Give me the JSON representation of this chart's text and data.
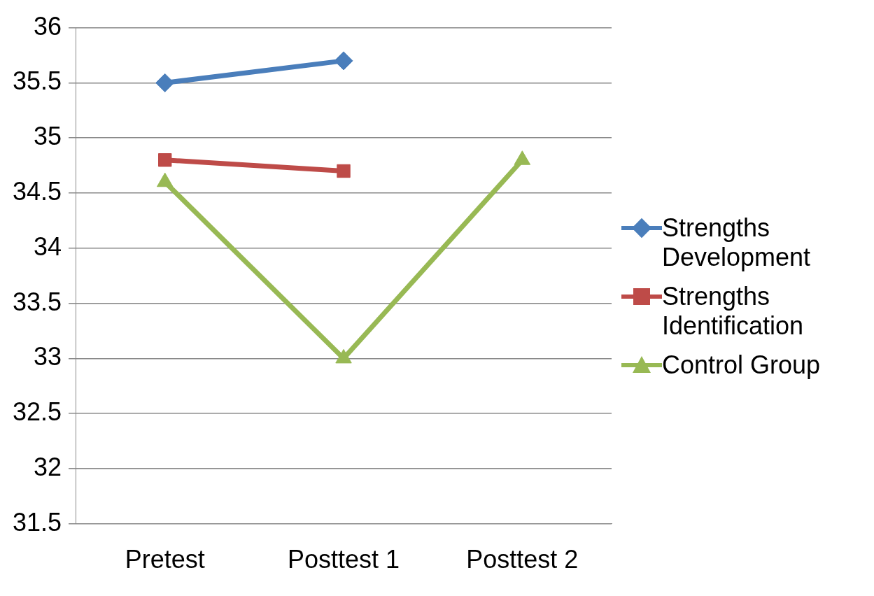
{
  "chart_data": {
    "type": "line",
    "categories": [
      "Pretest",
      "Posttest 1",
      "Posttest 2"
    ],
    "series": [
      {
        "name": "Strengths Development",
        "color": "#4a7ebb",
        "marker": "diamond",
        "values": [
          35.5,
          35.7,
          null
        ]
      },
      {
        "name": "Strengths Identification",
        "color": "#be4b48",
        "marker": "square",
        "values": [
          34.8,
          34.7,
          null
        ]
      },
      {
        "name": "Control Group",
        "color": "#98b954",
        "marker": "triangle",
        "values": [
          34.6,
          33.0,
          34.8
        ]
      }
    ],
    "ylim": [
      31.5,
      36
    ],
    "yticks": [
      31.5,
      32,
      32.5,
      33,
      33.5,
      34,
      34.5,
      35,
      35.5,
      36
    ],
    "grid": "y",
    "legend": "right"
  }
}
